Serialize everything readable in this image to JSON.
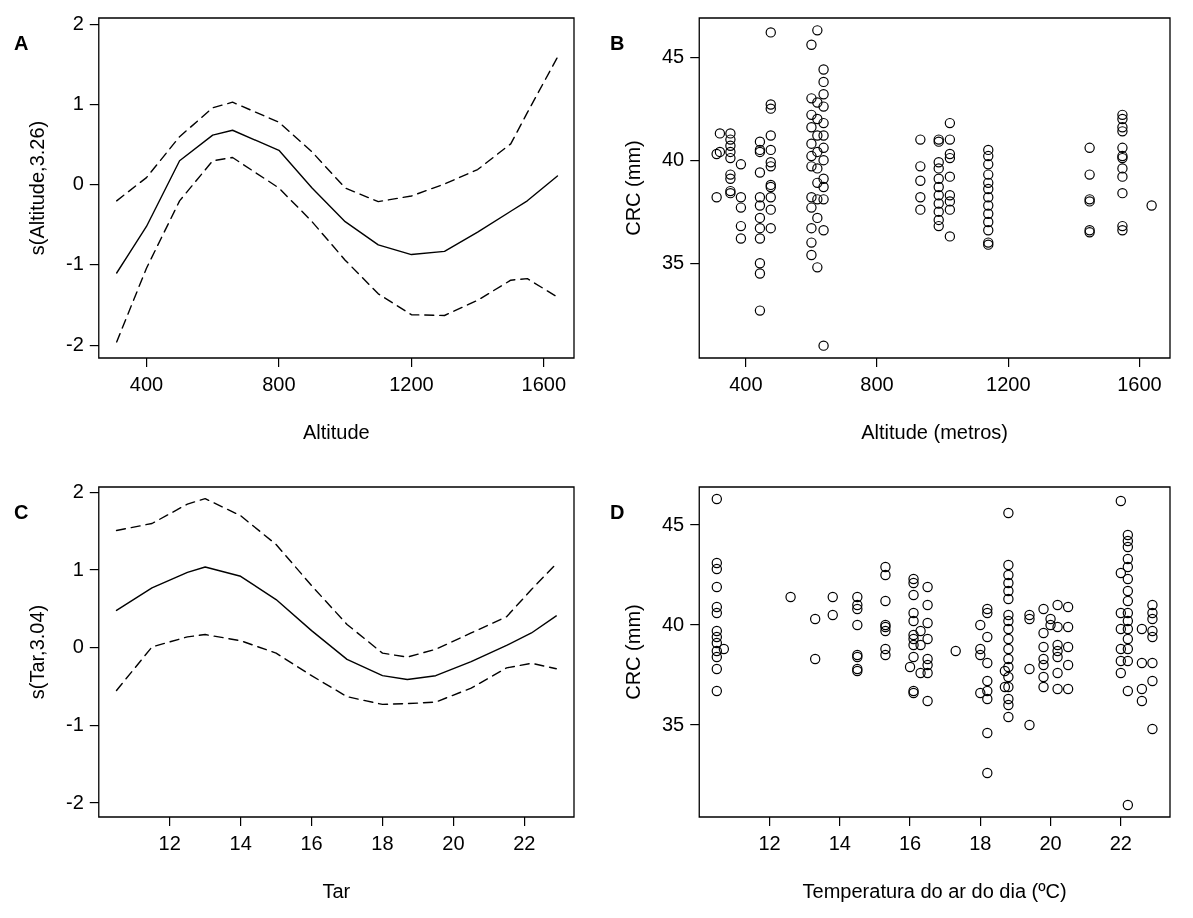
{
  "chart_data": [
    {
      "type": "line",
      "title": "A",
      "xlabel": "Altitude",
      "ylabel": "s(Altitude,3.26)",
      "xlim": [
        256,
        1691
      ],
      "xticks": [
        400,
        800,
        1200,
        1600
      ],
      "ylim": [
        -2.16,
        2.08
      ],
      "yticks": [
        -2,
        -1,
        0,
        1,
        2
      ],
      "series": [
        {
          "color": "#000000",
          "line_style": "solid",
          "marker": "none",
          "x": [
            310,
            400,
            500,
            600,
            660,
            800,
            900,
            1000,
            1100,
            1200,
            1300,
            1400,
            1500,
            1550,
            1641
          ],
          "values": [
            -1.1,
            -0.52,
            0.3,
            0.62,
            0.68,
            0.43,
            -0.04,
            -0.46,
            -0.75,
            -0.87,
            -0.83,
            -0.59,
            -0.33,
            -0.2,
            0.11
          ]
        },
        {
          "color": "#000000",
          "line_style": "dashed",
          "marker": "none",
          "x": [
            310,
            400,
            500,
            600,
            660,
            800,
            900,
            1000,
            1100,
            1200,
            1300,
            1400,
            1500,
            1550,
            1641
          ],
          "values": [
            -0.2,
            0.09,
            0.6,
            0.96,
            1.03,
            0.78,
            0.41,
            -0.04,
            -0.21,
            -0.14,
            0.01,
            0.19,
            0.51,
            0.9,
            1.59
          ]
        },
        {
          "color": "#000000",
          "line_style": "dashed",
          "marker": "none",
          "x": [
            310,
            400,
            500,
            600,
            660,
            800,
            900,
            1000,
            1100,
            1200,
            1300,
            1400,
            1500,
            1550,
            1641
          ],
          "values": [
            -1.96,
            -1.04,
            -0.2,
            0.3,
            0.34,
            -0.04,
            -0.46,
            -0.94,
            -1.36,
            -1.62,
            -1.63,
            -1.44,
            -1.19,
            -1.17,
            -1.4
          ]
        }
      ]
    },
    {
      "type": "scatter",
      "title": "B",
      "xlabel": "Altitude (metros)",
      "ylabel": "CRC (mm)",
      "xlim": [
        258,
        1693
      ],
      "xticks": [
        400,
        800,
        1200,
        1600
      ],
      "ylim": [
        30.4,
        46.9
      ],
      "yticks": [
        35,
        40,
        45
      ],
      "color": "#000000",
      "marker": "circle",
      "x": [
        311,
        311,
        321,
        321,
        353,
        353,
        353,
        353,
        353,
        353,
        353,
        353,
        353,
        385,
        385,
        385,
        385,
        385,
        443,
        443,
        443,
        443,
        443,
        443,
        443,
        443,
        443,
        443,
        443,
        443,
        476,
        476,
        476,
        476,
        476,
        476,
        476,
        476,
        476,
        476,
        476,
        476,
        600,
        600,
        600,
        600,
        600,
        600,
        600,
        600,
        600,
        600,
        600,
        600,
        618,
        618,
        618,
        618,
        618,
        618,
        618,
        618,
        618,
        618,
        637,
        637,
        637,
        637,
        637,
        637,
        637,
        637,
        637,
        637,
        637,
        637,
        637,
        932,
        932,
        932,
        932,
        932,
        988,
        988,
        988,
        988,
        988,
        988,
        988,
        988,
        988,
        988,
        988,
        1022,
        1022,
        1022,
        1022,
        1022,
        1022,
        1022,
        1022,
        1022,
        1139,
        1139,
        1139,
        1139,
        1139,
        1139,
        1139,
        1139,
        1139,
        1139,
        1139,
        1139,
        1139,
        1448,
        1448,
        1448,
        1448,
        1448,
        1448,
        1548,
        1548,
        1548,
        1548,
        1548,
        1548,
        1548,
        1548,
        1548,
        1548,
        1548,
        1548,
        1637
      ],
      "values": [
        38.2,
        40.3,
        41.3,
        40.4,
        41.3,
        41.0,
        40.7,
        40.4,
        40.1,
        39.3,
        39.1,
        38.5,
        38.4,
        39.8,
        38.2,
        37.7,
        36.8,
        36.2,
        40.9,
        40.5,
        40.4,
        39.4,
        38.2,
        37.8,
        37.2,
        36.7,
        36.2,
        35.0,
        34.5,
        32.7,
        46.2,
        42.7,
        42.5,
        41.2,
        40.5,
        39.9,
        39.7,
        38.8,
        38.7,
        38.2,
        37.6,
        36.7,
        45.6,
        43.0,
        42.2,
        41.6,
        40.8,
        40.2,
        39.7,
        38.2,
        37.7,
        36.7,
        36.0,
        35.4,
        46.3,
        42.8,
        42.0,
        41.2,
        40.4,
        39.6,
        38.9,
        38.1,
        37.2,
        34.8,
        44.4,
        43.8,
        43.2,
        42.6,
        41.8,
        41.2,
        40.6,
        40.0,
        39.1,
        38.7,
        38.1,
        36.6,
        31.0,
        41.0,
        39.7,
        39.0,
        38.2,
        37.6,
        41.0,
        40.9,
        39.9,
        39.6,
        39.1,
        38.7,
        38.3,
        37.9,
        37.5,
        37.1,
        36.8,
        41.8,
        41.0,
        40.3,
        40.1,
        39.2,
        38.3,
        38.0,
        37.6,
        36.3,
        40.5,
        40.2,
        39.8,
        39.3,
        38.9,
        38.6,
        38.2,
        37.8,
        37.4,
        37.0,
        36.6,
        36.0,
        35.9,
        40.6,
        39.3,
        38.1,
        38.0,
        36.6,
        36.5,
        42.2,
        42.0,
        41.6,
        41.4,
        40.6,
        40.2,
        40.1,
        39.6,
        39.2,
        38.4,
        36.8,
        36.6,
        37.8
      ]
    },
    {
      "type": "line",
      "title": "C",
      "xlabel": "Tar",
      "ylabel": "s(Tar,3.04)",
      "xlim": [
        10.0,
        23.4
      ],
      "xticks": [
        12,
        14,
        16,
        18,
        20,
        22
      ],
      "ylim": [
        -2.18,
        2.07
      ],
      "yticks": [
        -2,
        -1,
        0,
        1,
        2
      ],
      "series": [
        {
          "color": "#000000",
          "line_style": "solid",
          "marker": "none",
          "x": [
            10.5,
            11.5,
            12.5,
            13,
            14,
            15,
            16,
            17,
            18,
            18.7,
            19.5,
            20.5,
            21.5,
            22.2,
            22.9
          ],
          "values": [
            0.48,
            0.77,
            0.97,
            1.04,
            0.92,
            0.62,
            0.22,
            -0.15,
            -0.36,
            -0.41,
            -0.36,
            -0.18,
            0.03,
            0.19,
            0.41
          ]
        },
        {
          "color": "#000000",
          "line_style": "dashed",
          "marker": "none",
          "x": [
            10.5,
            11.5,
            12.5,
            13,
            14,
            15,
            16,
            17,
            18,
            18.7,
            19.5,
            20.5,
            21.5,
            22.2,
            22.9
          ],
          "values": [
            1.51,
            1.6,
            1.85,
            1.92,
            1.7,
            1.33,
            0.8,
            0.3,
            -0.07,
            -0.12,
            -0.02,
            0.19,
            0.4,
            0.75,
            1.08
          ]
        },
        {
          "color": "#000000",
          "line_style": "dashed",
          "marker": "none",
          "x": [
            10.5,
            11.5,
            12.5,
            13,
            14,
            15,
            16,
            17,
            18,
            18.7,
            19.5,
            20.5,
            21.5,
            22.2,
            22.9
          ],
          "values": [
            -0.55,
            0.01,
            0.14,
            0.17,
            0.09,
            -0.07,
            -0.36,
            -0.63,
            -0.73,
            -0.72,
            -0.7,
            -0.52,
            -0.26,
            -0.2,
            -0.27
          ]
        }
      ]
    },
    {
      "type": "scatter",
      "title": "D",
      "xlabel": "Temperatura do ar do dia (ºC)",
      "ylabel": "CRC (mm)",
      "xlim": [
        10.0,
        23.4
      ],
      "xticks": [
        12,
        14,
        16,
        18,
        20,
        22
      ],
      "ylim": [
        30.4,
        46.9
      ],
      "yticks": [
        35,
        40,
        45
      ],
      "color": "#000000",
      "marker": "circle",
      "x": [
        10.5,
        10.5,
        10.5,
        10.5,
        10.5,
        10.5,
        10.5,
        10.5,
        10.5,
        10.5,
        10.5,
        10.5,
        10.5,
        10.7,
        12.6,
        13.3,
        13.3,
        13.8,
        13.8,
        14.5,
        14.5,
        14.5,
        14.5,
        14.5,
        14.5,
        14.5,
        14.5,
        15.3,
        15.3,
        15.3,
        15.3,
        15.3,
        15.3,
        15.3,
        15.3,
        16.1,
        16.1,
        16.1,
        16.1,
        16.1,
        16.1,
        16.1,
        16.1,
        16.1,
        16.1,
        16.1,
        16.0,
        16.3,
        16.3,
        16.3,
        16.5,
        16.5,
        16.5,
        16.5,
        16.5,
        16.5,
        16.5,
        16.5,
        17.3,
        18.0,
        18.0,
        18.0,
        18.0,
        18.2,
        18.2,
        18.2,
        18.2,
        18.2,
        18.2,
        18.2,
        18.2,
        18.2,
        18.8,
        18.8,
        18.8,
        18.8,
        18.8,
        18.8,
        18.8,
        18.8,
        18.8,
        18.8,
        18.8,
        18.8,
        18.8,
        18.8,
        18.8,
        18.8,
        18.8,
        18.8,
        18.7,
        18.7,
        19.4,
        19.4,
        19.4,
        19.4,
        19.8,
        19.8,
        19.8,
        19.8,
        19.8,
        19.8,
        19.8,
        20.0,
        20.0,
        20.2,
        20.2,
        20.2,
        20.2,
        20.2,
        20.2,
        20.2,
        20.5,
        20.5,
        20.5,
        20.5,
        20.5,
        22.0,
        22.0,
        22.0,
        22.0,
        22.0,
        22.0,
        22.0,
        22.2,
        22.2,
        22.2,
        22.2,
        22.2,
        22.2,
        22.2,
        22.2,
        22.2,
        22.2,
        22.2,
        22.2,
        22.2,
        22.2,
        22.2,
        22.2,
        22.6,
        22.6,
        22.6,
        22.6,
        22.9,
        22.9,
        22.9,
        22.9,
        22.9,
        22.9,
        22.9,
        22.9
      ],
      "values": [
        46.3,
        43.1,
        42.8,
        41.9,
        40.9,
        40.6,
        39.7,
        39.4,
        39.1,
        38.7,
        38.4,
        37.8,
        36.7,
        38.8,
        41.4,
        40.3,
        38.3,
        41.4,
        40.5,
        41.4,
        41.0,
        40.8,
        40.0,
        38.5,
        38.4,
        37.8,
        37.7,
        42.9,
        42.5,
        41.2,
        40.0,
        39.9,
        39.7,
        38.8,
        38.5,
        42.3,
        42.1,
        41.5,
        40.6,
        40.2,
        39.5,
        39.3,
        39.0,
        38.4,
        36.7,
        36.6,
        37.9,
        39.7,
        39.0,
        37.6,
        41.9,
        41.0,
        40.1,
        39.3,
        38.3,
        38.0,
        37.6,
        36.2,
        38.7,
        40.0,
        38.8,
        38.5,
        36.6,
        40.8,
        40.6,
        39.4,
        38.1,
        37.2,
        36.7,
        36.3,
        34.6,
        32.6,
        45.6,
        43.0,
        42.5,
        42.1,
        41.7,
        41.3,
        40.5,
        40.2,
        39.8,
        39.3,
        38.8,
        38.3,
        37.9,
        37.4,
        36.9,
        36.3,
        36.0,
        35.4,
        37.7,
        36.9,
        40.5,
        40.3,
        37.8,
        35.0,
        40.8,
        39.6,
        38.9,
        38.3,
        38.0,
        37.4,
        36.9,
        40.3,
        40.0,
        41.0,
        39.9,
        39.0,
        38.7,
        38.4,
        37.6,
        36.8,
        40.9,
        39.9,
        38.9,
        38.0,
        36.8,
        46.2,
        42.6,
        40.6,
        39.8,
        38.8,
        38.2,
        37.6,
        44.5,
        44.2,
        43.9,
        43.3,
        42.9,
        42.3,
        41.7,
        41.2,
        40.6,
        40.2,
        39.8,
        39.3,
        38.8,
        38.2,
        36.7,
        31.0,
        39.8,
        38.1,
        36.8,
        36.2,
        41.0,
        40.6,
        40.3,
        39.7,
        39.4,
        38.1,
        37.2,
        34.8
      ]
    }
  ]
}
